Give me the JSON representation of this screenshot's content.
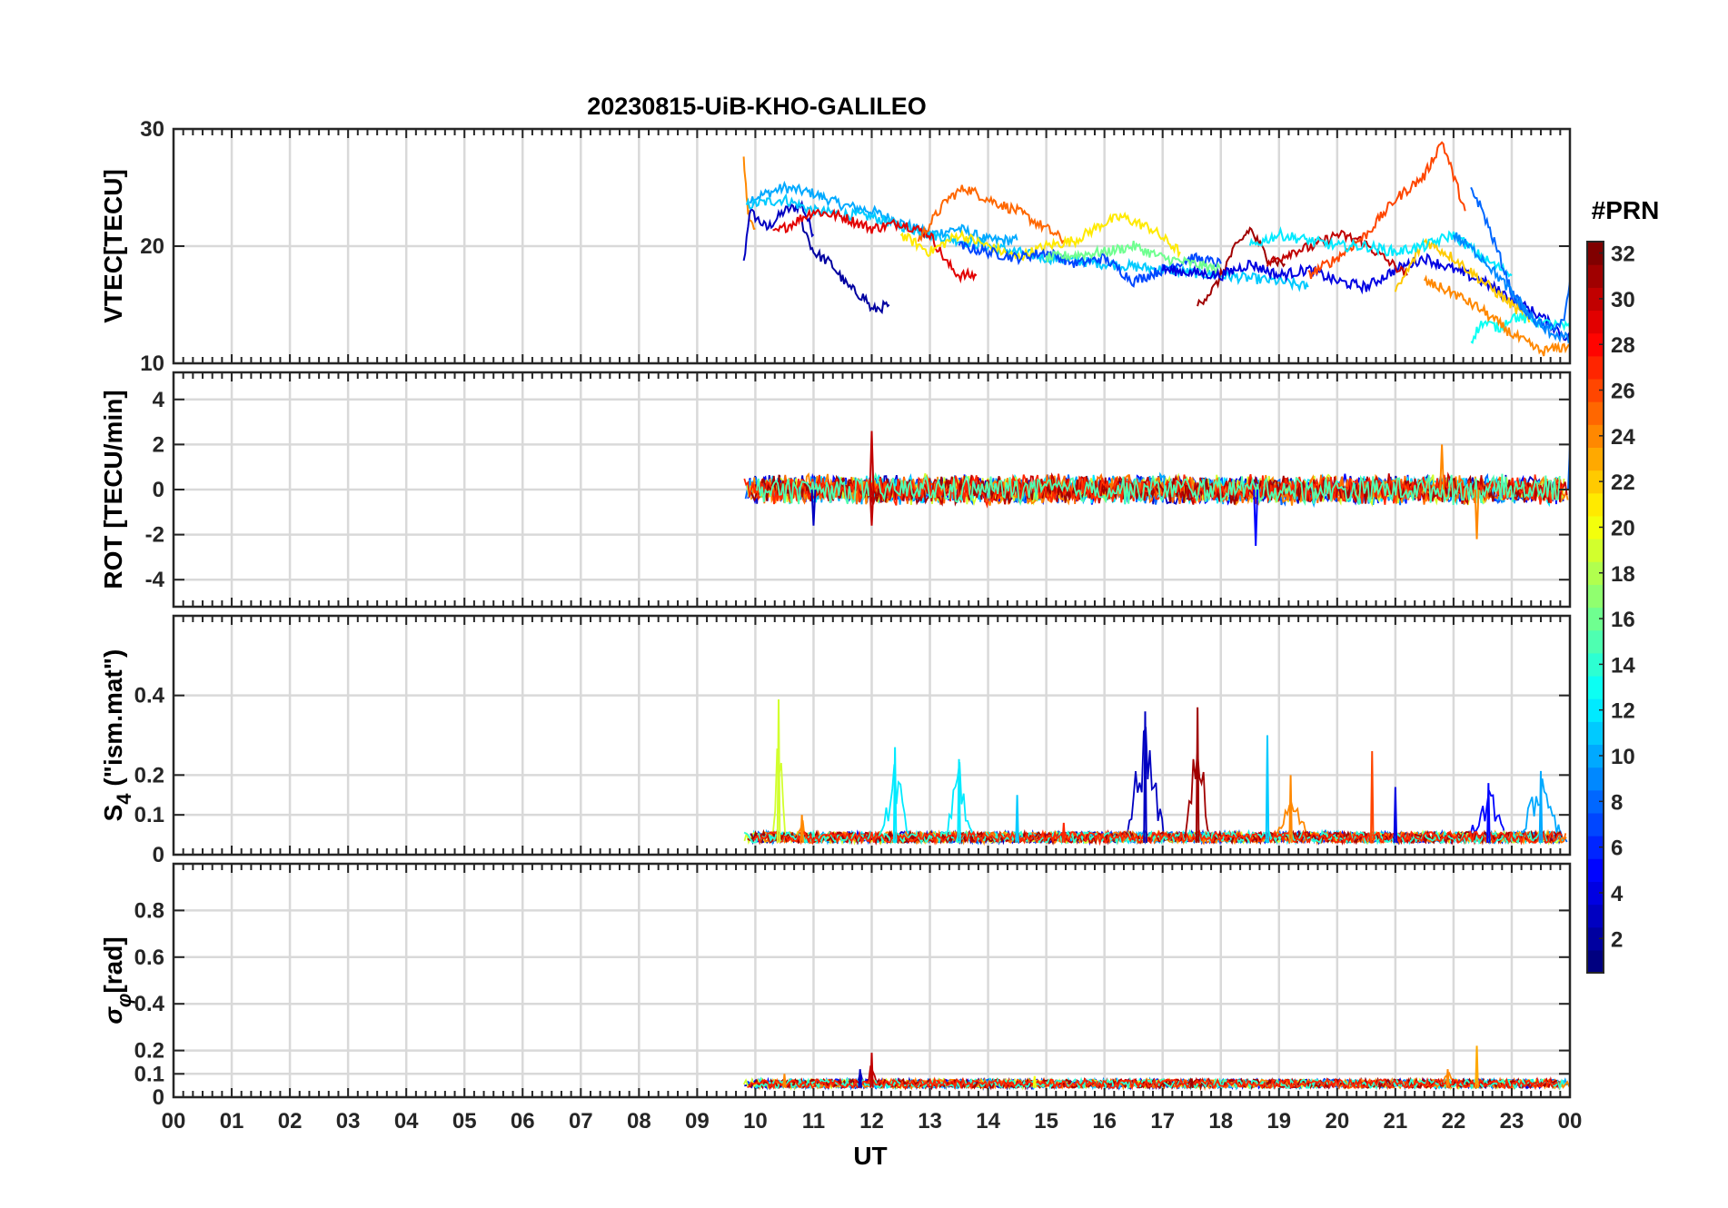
{
  "figure": {
    "title": "20230815-UiB-KHO-GALILEO",
    "xlabel": "UT",
    "colorbar_title": "#PRN"
  },
  "chart_data": [
    {
      "type": "line",
      "panel": "vtec",
      "ylabel": "VTEC[TECU]",
      "xlim": [
        0,
        24
      ],
      "ylim": [
        10,
        30
      ],
      "yticks": [
        "10",
        "20",
        "30"
      ],
      "grid": true,
      "series": [
        {
          "prn": 24,
          "x": [
            9.8,
            9.85,
            9.9,
            10.0
          ],
          "y": [
            27.5,
            24.0,
            22.0,
            21.5
          ]
        },
        {
          "prn": 3,
          "x": [
            9.8,
            9.9,
            10.2,
            10.5,
            10.8,
            11.0
          ],
          "y": [
            18.5,
            23.0,
            21.5,
            23.0,
            23.5,
            21.0
          ]
        },
        {
          "prn": 10,
          "x": [
            9.9,
            10.5,
            11.0,
            11.5,
            12.0,
            12.5,
            13.0,
            13.5,
            14.0,
            14.5
          ],
          "y": [
            24.0,
            25.0,
            24.5,
            23.5,
            23.0,
            22.0,
            21.0,
            21.5,
            20.5,
            20.5
          ]
        },
        {
          "prn": 11,
          "x": [
            9.85,
            10.5,
            11.0,
            12.0,
            13.0,
            14.0,
            15.0,
            16.0,
            17.0,
            18.0,
            19.0,
            19.5
          ],
          "y": [
            23.5,
            24.0,
            23.0,
            22.5,
            21.0,
            20.0,
            19.0,
            18.5,
            18.0,
            17.5,
            17.0,
            16.5
          ]
        },
        {
          "prn": 2,
          "x": [
            10.8,
            11.0,
            11.3,
            11.6,
            11.9,
            12.0,
            12.3
          ],
          "y": [
            22.0,
            19.5,
            18.5,
            16.5,
            15.5,
            14.5,
            15.0
          ]
        },
        {
          "prn": 29,
          "x": [
            10.3,
            11.0,
            11.5,
            12.0,
            12.5,
            13.0,
            13.3,
            13.5,
            13.8
          ],
          "y": [
            21.0,
            23.0,
            22.5,
            21.5,
            22.0,
            21.0,
            18.5,
            17.5,
            17.5
          ]
        },
        {
          "prn": 25,
          "x": [
            12.8,
            13.3,
            13.6,
            14.0,
            14.5,
            15.0,
            15.3
          ],
          "y": [
            20.5,
            24.0,
            25.0,
            24.0,
            23.0,
            21.5,
            20.5
          ]
        },
        {
          "prn": 21,
          "x": [
            12.5,
            13.0,
            13.5,
            14.0,
            14.5,
            15.0,
            15.5,
            16.0,
            16.3,
            16.8,
            17.3
          ],
          "y": [
            21.0,
            19.5,
            21.0,
            20.0,
            19.0,
            20.0,
            20.5,
            22.0,
            22.5,
            21.5,
            19.5
          ]
        },
        {
          "prn": 7,
          "x": [
            13.5,
            14.0,
            14.5,
            15.0,
            15.5,
            16.0,
            16.5,
            17.0,
            17.5,
            18.0
          ],
          "y": [
            20.0,
            19.5,
            19.0,
            19.5,
            18.5,
            19.0,
            17.0,
            18.0,
            19.0,
            18.5
          ]
        },
        {
          "prn": 16,
          "x": [
            15.0,
            16.0,
            16.5,
            17.0,
            17.5,
            18.0
          ],
          "y": [
            19.0,
            19.5,
            20.0,
            19.0,
            18.5,
            18.0
          ]
        },
        {
          "prn": 31,
          "x": [
            17.6,
            17.9,
            18.2,
            18.5,
            18.8,
            19.1
          ],
          "y": [
            15.0,
            16.5,
            19.5,
            21.5,
            19.0,
            18.5
          ]
        },
        {
          "prn": 4,
          "x": [
            17.0,
            18.0,
            18.5,
            19.0,
            19.5,
            20.0,
            20.5,
            21.0,
            21.5,
            22.0,
            22.5,
            23.0,
            23.5,
            24.0
          ],
          "y": [
            18.0,
            17.5,
            18.5,
            17.5,
            18.0,
            17.0,
            16.5,
            18.0,
            19.0,
            18.0,
            17.0,
            15.5,
            14.0,
            12.0
          ]
        },
        {
          "prn": 30,
          "x": [
            18.8,
            19.2,
            19.6,
            20.0,
            20.4,
            20.8,
            21.2
          ],
          "y": [
            18.5,
            19.5,
            20.0,
            21.0,
            20.5,
            19.0,
            17.5
          ]
        },
        {
          "prn": 26,
          "x": [
            19.5,
            20.0,
            20.5,
            21.0,
            21.5,
            21.8,
            22.0,
            22.2
          ],
          "y": [
            17.5,
            19.0,
            21.0,
            24.0,
            26.0,
            29.0,
            26.0,
            23.0
          ]
        },
        {
          "prn": 22,
          "x": [
            21.0,
            21.5,
            22.0,
            22.5,
            23.0,
            23.3
          ],
          "y": [
            16.0,
            20.5,
            19.0,
            17.0,
            15.0,
            13.5
          ]
        },
        {
          "prn": 12,
          "x": [
            18.5,
            19.0,
            19.5,
            20.0,
            20.5,
            21.0,
            21.5,
            22.0,
            22.5,
            23.0
          ],
          "y": [
            20.0,
            21.0,
            20.5,
            20.0,
            20.0,
            19.5,
            20.0,
            21.0,
            19.0,
            17.5
          ]
        },
        {
          "prn": 13,
          "x": [
            22.3,
            22.5,
            22.8,
            23.0,
            23.5,
            24.0
          ],
          "y": [
            12.0,
            13.5,
            13.0,
            14.0,
            13.5,
            13.0
          ]
        },
        {
          "prn": 8,
          "x": [
            22.3,
            22.5,
            22.8,
            23.0,
            23.3,
            23.6,
            23.9,
            24.0
          ],
          "y": [
            25.0,
            23.0,
            19.0,
            16.0,
            14.0,
            13.0,
            13.5,
            17.0
          ]
        },
        {
          "prn": 24,
          "x": [
            21.5,
            22.0,
            22.5,
            23.0,
            23.5,
            24.0
          ],
          "y": [
            17.0,
            16.0,
            14.5,
            12.5,
            11.0,
            11.5
          ]
        },
        {
          "prn": 9,
          "x": [
            22.0,
            22.5,
            23.0,
            23.5,
            24.0
          ],
          "y": [
            21.0,
            19.0,
            16.0,
            13.0,
            12.0
          ]
        }
      ]
    },
    {
      "type": "line",
      "panel": "rot",
      "ylabel": "ROT [TECU/min]",
      "xlim": [
        0,
        24
      ],
      "ylim": [
        -5.2,
        5.2
      ],
      "yticks": [
        "-4",
        "-2",
        "0",
        "2",
        "4"
      ],
      "grid": true,
      "active_range": [
        9.8,
        24.0
      ],
      "noise_amplitude": 0.6,
      "spikes": [
        {
          "x": 12.0,
          "y": 2.6,
          "prn": 30
        },
        {
          "x": 12.0,
          "y": -1.6,
          "prn": 30
        },
        {
          "x": 18.6,
          "y": -2.5,
          "prn": 5
        },
        {
          "x": 22.4,
          "y": -2.2,
          "prn": 24
        },
        {
          "x": 21.8,
          "y": 2.0,
          "prn": 24
        },
        {
          "x": 11.0,
          "y": -1.6,
          "prn": 3
        },
        {
          "x": 24.0,
          "y": 1.9,
          "prn": 8
        }
      ]
    },
    {
      "type": "line",
      "panel": "s4",
      "ylabel": "S4 (\"ism.mat\")",
      "ylabel_main": "S",
      "ylabel_sub": "4",
      "ylabel_rest": " (\"ism.mat\")",
      "xlim": [
        0,
        24
      ],
      "ylim": [
        0,
        0.6
      ],
      "yticks": [
        "0",
        "0.1",
        "0.2",
        "0.4"
      ],
      "grid": true,
      "active_range": [
        9.8,
        24.0
      ],
      "baseline": 0.03,
      "bursts": [
        {
          "x": 10.4,
          "y": 0.39,
          "prn": 19,
          "width": 0.12
        },
        {
          "x": 10.8,
          "y": 0.1,
          "prn": 24,
          "width": 0.2
        },
        {
          "x": 12.4,
          "y": 0.27,
          "prn": 12,
          "width": 0.3
        },
        {
          "x": 13.5,
          "y": 0.24,
          "prn": 12,
          "width": 0.3
        },
        {
          "x": 14.5,
          "y": 0.15,
          "prn": 11,
          "width": 0.3
        },
        {
          "x": 15.3,
          "y": 0.08,
          "prn": 27,
          "width": 0.3
        },
        {
          "x": 16.7,
          "y": 0.36,
          "prn": 3,
          "width": 0.4
        },
        {
          "x": 17.6,
          "y": 0.37,
          "prn": 31,
          "width": 0.25
        },
        {
          "x": 18.8,
          "y": 0.3,
          "prn": 11,
          "width": 0.25
        },
        {
          "x": 19.2,
          "y": 0.2,
          "prn": 24,
          "width": 0.4
        },
        {
          "x": 20.6,
          "y": 0.26,
          "prn": 26,
          "width": 0.3
        },
        {
          "x": 21.0,
          "y": 0.17,
          "prn": 4,
          "width": 0.3
        },
        {
          "x": 22.6,
          "y": 0.18,
          "prn": 5,
          "width": 0.5
        },
        {
          "x": 23.5,
          "y": 0.21,
          "prn": 10,
          "width": 0.5
        }
      ]
    },
    {
      "type": "line",
      "panel": "sigma",
      "ylabel": "σφ[rad]",
      "ylabel_main": "σ",
      "ylabel_sub": "φ",
      "ylabel_rest": "[rad]",
      "xlim": [
        0,
        24
      ],
      "ylim": [
        0,
        1.0
      ],
      "yticks": [
        "0",
        "0.1",
        "0.2",
        "0.4",
        "0.6",
        "0.8"
      ],
      "grid": true,
      "active_range": [
        9.8,
        24.0
      ],
      "baseline": 0.04,
      "bursts": [
        {
          "x": 12.0,
          "y": 0.19,
          "prn": 30,
          "width": 0.15
        },
        {
          "x": 11.8,
          "y": 0.12,
          "prn": 3,
          "width": 0.2
        },
        {
          "x": 10.5,
          "y": 0.1,
          "prn": 24,
          "width": 0.3
        },
        {
          "x": 22.4,
          "y": 0.22,
          "prn": 23,
          "width": 0.3
        },
        {
          "x": 21.9,
          "y": 0.12,
          "prn": 24,
          "width": 0.3
        },
        {
          "x": 17.5,
          "y": 0.08,
          "prn": 31,
          "width": 0.3
        },
        {
          "x": 14.8,
          "y": 0.09,
          "prn": 20,
          "width": 0.3
        }
      ]
    }
  ],
  "xaxis": {
    "ticks": [
      "00",
      "01",
      "02",
      "03",
      "04",
      "05",
      "06",
      "07",
      "08",
      "09",
      "10",
      "11",
      "12",
      "13",
      "14",
      "15",
      "16",
      "17",
      "18",
      "19",
      "20",
      "21",
      "22",
      "23",
      "00"
    ]
  },
  "colorbar": {
    "min": 1,
    "max": 32,
    "ticks": [
      "2",
      "4",
      "6",
      "8",
      "10",
      "12",
      "14",
      "16",
      "18",
      "20",
      "22",
      "24",
      "26",
      "28",
      "30",
      "32"
    ],
    "colormap": "jet"
  }
}
